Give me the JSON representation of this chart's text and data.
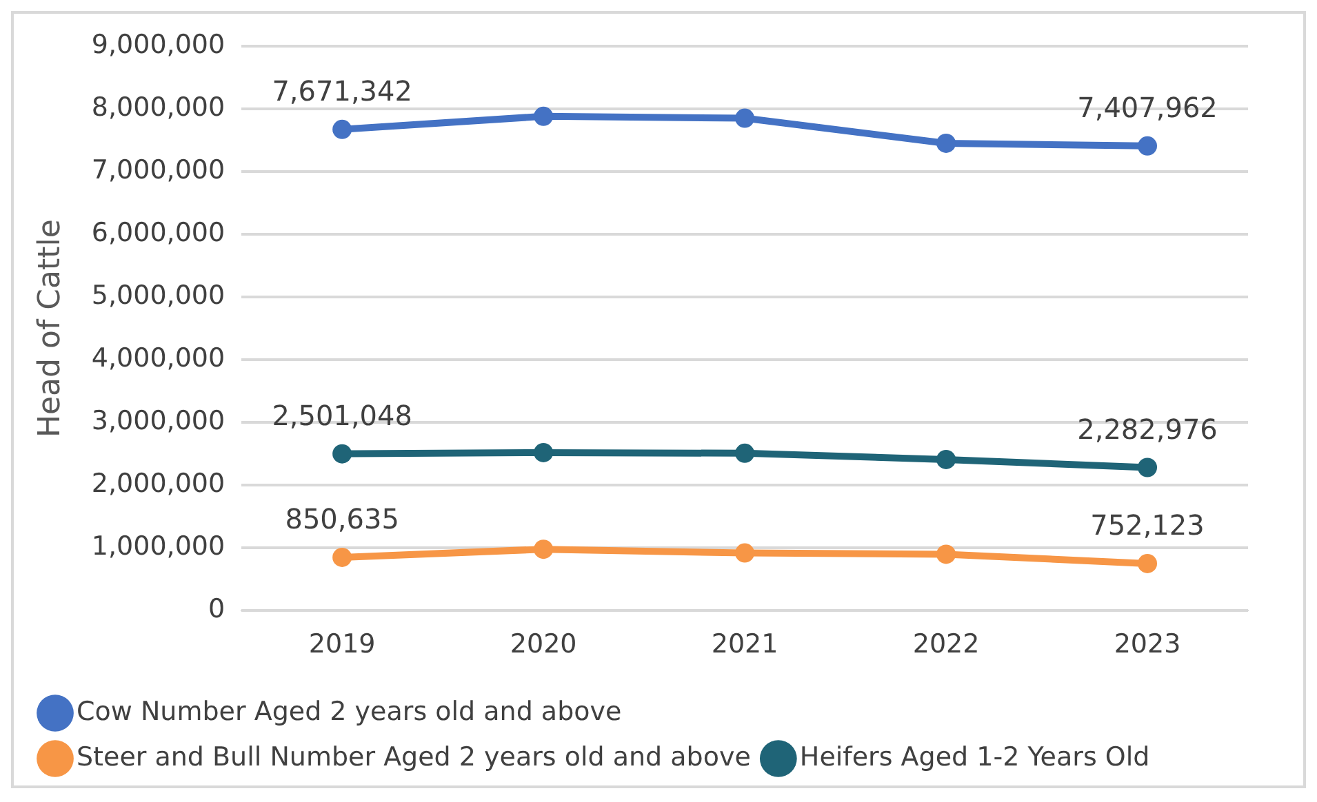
{
  "chart_data": {
    "type": "line",
    "ylabel": "Head of Cattle",
    "categories": [
      "2019",
      "2020",
      "2021",
      "2022",
      "2023"
    ],
    "series": [
      {
        "name": "Cow Number Aged 2 years old and above",
        "color": "#4472c4",
        "values": [
          7671342,
          7880000,
          7850000,
          7450000,
          7407962
        ],
        "value_labels": [
          "7,671,342",
          null,
          null,
          null,
          "7,407,962"
        ]
      },
      {
        "name": "Steer and Bull Number Aged 2 years old and above",
        "color": "#f79646",
        "values": [
          850635,
          980000,
          920000,
          900000,
          752123
        ],
        "value_labels": [
          "850,635",
          null,
          null,
          null,
          "752,123"
        ]
      },
      {
        "name": "Heifers Aged 1-2 Years Old",
        "color": "#1f6477",
        "values": [
          2501048,
          2520000,
          2510000,
          2410000,
          2282976
        ],
        "value_labels": [
          "2,501,048",
          null,
          null,
          null,
          "2,282,976"
        ]
      }
    ],
    "ylim": [
      0,
      9000000
    ],
    "yticks": [
      0,
      {
        "value": 1000000,
        "label": "1,000,000"
      },
      {
        "value": 2000000,
        "label": "2,000,000"
      },
      {
        "value": 3000000,
        "label": "3,000,000"
      },
      {
        "value": 4000000,
        "label": "4,000,000"
      },
      {
        "value": 5000000,
        "label": "5,000,000"
      },
      {
        "value": 6000000,
        "label": "6,000,000"
      },
      {
        "value": 7000000,
        "label": "7,000,000"
      },
      {
        "value": 8000000,
        "label": "8,000,000"
      },
      {
        "value": 9000000,
        "label": "9,000,000"
      }
    ],
    "grid": "y",
    "legend": "bottom",
    "marker": "circle",
    "line_style": "solid"
  }
}
